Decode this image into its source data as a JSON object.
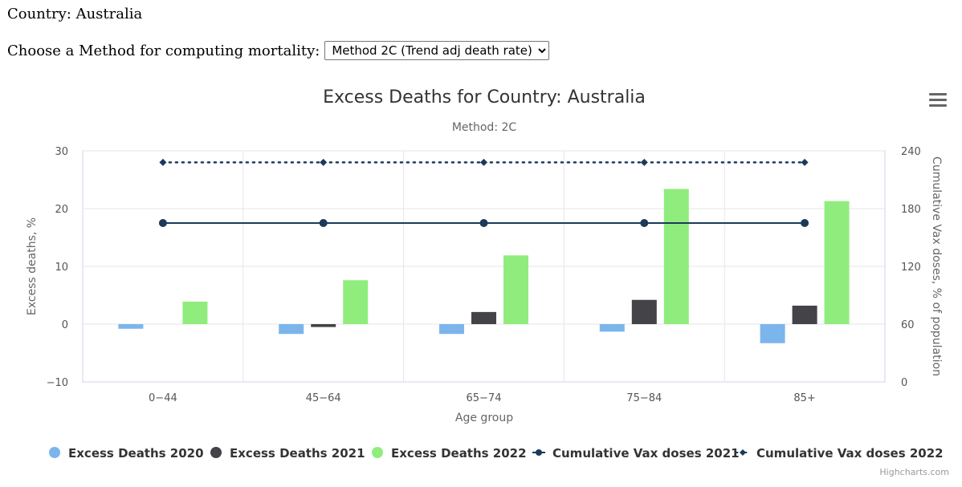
{
  "page": {
    "country_line": "Country: Australia",
    "method_prompt": "Choose a Method for computing mortality:",
    "method_selected": "Method 2C (Trend adj death rate)",
    "menu_icon": "hamburger-menu-icon",
    "credits": "Highcharts.com"
  },
  "chart_data": {
    "type": "bar",
    "title": "Excess Deaths for Country: Australia",
    "subtitle": "Method: 2C",
    "xlabel": "Age group",
    "ylabel": "Excess deaths, %",
    "y2label": "Cumulative Vax doses, % of population",
    "categories": [
      "0-44",
      "45-64",
      "65-74",
      "75-84",
      "85+"
    ],
    "ylim": [
      -10,
      30
    ],
    "yticks": [
      -10,
      0,
      10,
      20,
      30
    ],
    "y2lim": [
      0,
      240
    ],
    "y2ticks": [
      0,
      60,
      120,
      180,
      240
    ],
    "grid": true,
    "legend_position": "bottom",
    "series": [
      {
        "name": "Excess Deaths 2020",
        "kind": "column",
        "axis": "left",
        "color": "#7cb5ec",
        "values": [
          -0.8,
          -1.7,
          -1.7,
          -1.3,
          -3.3
        ]
      },
      {
        "name": "Excess Deaths 2021",
        "kind": "column",
        "axis": "left",
        "color": "#434348",
        "values": [
          0,
          -0.5,
          2.1,
          4.2,
          3.2
        ]
      },
      {
        "name": "Excess Deaths 2022",
        "kind": "column",
        "axis": "left",
        "color": "#90ed7d",
        "values": [
          3.9,
          7.6,
          11.9,
          23.4,
          21.3
        ]
      },
      {
        "name": "Cumulative Vax doses 2021",
        "kind": "line",
        "axis": "right",
        "color": "#1a3a5c",
        "dash": "solid",
        "marker": "circle",
        "values": [
          165,
          165,
          165,
          165,
          165
        ]
      },
      {
        "name": "Cumulative Vax doses 2022",
        "kind": "line",
        "axis": "right",
        "color": "#1a3a5c",
        "dash": "dot",
        "marker": "diamond",
        "values": [
          228,
          228,
          228,
          228,
          228
        ]
      }
    ]
  }
}
